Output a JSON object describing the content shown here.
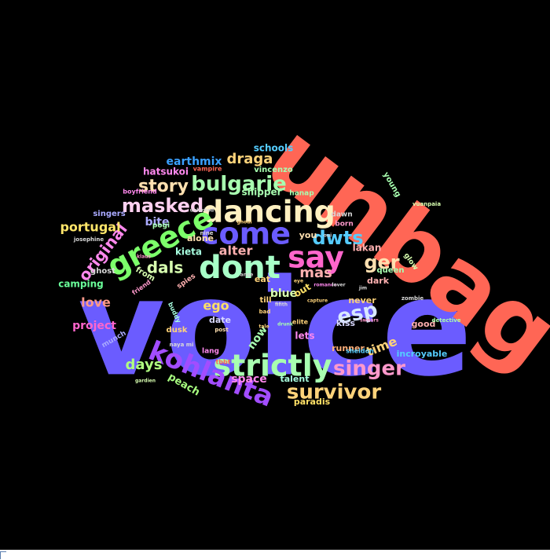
{
  "cloud": {
    "background": "#000000",
    "words": [
      {
        "text": "voice",
        "color": "#6b5cff"
      },
      {
        "text": "unbag",
        "color": "#ff6655"
      },
      {
        "text": "dont",
        "color": "#a8ffc8"
      },
      {
        "text": "dancing",
        "color": "#fff0c0"
      },
      {
        "text": "greece",
        "color": "#7cff6a"
      },
      {
        "text": "strictly",
        "color": "#a8ffb0"
      },
      {
        "text": "kohlanta",
        "color": "#a24dff"
      },
      {
        "text": "come",
        "color": "#6b5cff"
      },
      {
        "text": "say",
        "color": "#ff66cc"
      },
      {
        "text": "bulgarie",
        "color": "#a8ffb0"
      },
      {
        "text": "masked",
        "color": "#ffd0f0"
      },
      {
        "text": "singer",
        "color": "#ff99cc"
      },
      {
        "text": "survivor",
        "color": "#ffd37a"
      },
      {
        "text": "esp",
        "color": "#d8e8ff"
      },
      {
        "text": "dwts",
        "color": "#55ccff"
      },
      {
        "text": "ger",
        "color": "#ffe0b0"
      },
      {
        "text": "original",
        "color": "#ff88ee"
      },
      {
        "text": "story",
        "color": "#ffe0b0"
      },
      {
        "text": "draga",
        "color": "#ffd37a"
      },
      {
        "text": "dals",
        "color": "#d8ffb0"
      },
      {
        "text": "mas",
        "color": "#ffb0b0"
      },
      {
        "text": "days",
        "color": "#b0ff80"
      },
      {
        "text": "portugal",
        "color": "#ffe66a"
      },
      {
        "text": "love",
        "color": "#ff9a8a"
      },
      {
        "text": "project",
        "color": "#ff66cc"
      },
      {
        "text": "earthmix",
        "color": "#3aa0ff"
      },
      {
        "text": "time",
        "color": "#ffd37a"
      },
      {
        "text": "ego",
        "color": "#ffe066"
      },
      {
        "text": "alter",
        "color": "#ffb0b0"
      },
      {
        "text": "space",
        "color": "#ff88ee"
      },
      {
        "text": "peach",
        "color": "#a8ff80"
      },
      {
        "text": "blue",
        "color": "#d8ffb0"
      },
      {
        "text": "kieta",
        "color": "#a8ffe0"
      },
      {
        "text": "bite",
        "color": "#aaaaff"
      },
      {
        "text": "hatsukoi",
        "color": "#ff88ee"
      },
      {
        "text": "shipper",
        "color": "#a8ffb0"
      },
      {
        "text": "camping",
        "color": "#6aff9a"
      },
      {
        "text": "schools",
        "color": "#55ccff"
      },
      {
        "text": "paradis",
        "color": "#ffe066"
      },
      {
        "text": "lakan",
        "color": "#ffb0b0"
      },
      {
        "text": "incroyable",
        "color": "#55ccff"
      },
      {
        "text": "good",
        "color": "#ffb0b0"
      },
      {
        "text": "never",
        "color": "#ffd37a"
      },
      {
        "text": "kiss",
        "color": "#d8d8ff"
      },
      {
        "text": "dark",
        "color": "#ffb0b0"
      },
      {
        "text": "queen",
        "color": "#a8ffb0"
      },
      {
        "text": "runner",
        "color": "#ffb07a"
      },
      {
        "text": "talent",
        "color": "#a8ffe0"
      },
      {
        "text": "young",
        "color": "#a8ffb0"
      },
      {
        "text": "date",
        "color": "#d8d8ff"
      },
      {
        "text": "now",
        "color": "#a8ffb0"
      },
      {
        "text": "out",
        "color": "#ffe066"
      },
      {
        "text": "eat",
        "color": "#ffd37a"
      },
      {
        "text": "alone",
        "color": "#ffe0b0"
      },
      {
        "text": "ghost",
        "color": "#d8d8d8"
      },
      {
        "text": "from",
        "color": "#d8ffb0"
      },
      {
        "text": "dusk",
        "color": "#ffd37a"
      },
      {
        "text": "vincenzo",
        "color": "#a8ffb0"
      },
      {
        "text": "singers",
        "color": "#aaaaff"
      },
      {
        "text": "hanap",
        "color": "#a8ffb0"
      },
      {
        "text": "dawn",
        "color": "#d8d8d8"
      },
      {
        "text": "lets",
        "color": "#ff88ee"
      },
      {
        "text": "you",
        "color": "#ffe0b0"
      },
      {
        "text": "born",
        "color": "#ff99cc"
      },
      {
        "text": "glow",
        "color": "#d8ffb0"
      },
      {
        "text": "lang",
        "color": "#ff88ee"
      },
      {
        "text": "munch",
        "color": "#aaaaff"
      },
      {
        "text": "vuanpaia",
        "color": "#d8ffb0"
      },
      {
        "text": "elite",
        "color": "#ffd37a"
      },
      {
        "text": "sheldon",
        "color": "#55ccff"
      },
      {
        "text": "tbbt",
        "color": "#ff6655"
      },
      {
        "text": "boyfriend",
        "color": "#ff88ee"
      },
      {
        "text": "vampire",
        "color": "#ff6655"
      },
      {
        "text": "josephine",
        "color": "#d8d8d8"
      },
      {
        "text": "friend",
        "color": "#ff99cc"
      },
      {
        "text": "detective",
        "color": "#a8ffb0"
      },
      {
        "text": "zombie",
        "color": "#d8d8d8"
      },
      {
        "text": "buddy",
        "color": "#a8ffe0"
      },
      {
        "text": "nine",
        "color": "#d8d8d8"
      },
      {
        "text": "pogi",
        "color": "#a8ffb0"
      },
      {
        "text": "swears",
        "color": "#ff99cc"
      },
      {
        "text": "capture",
        "color": "#ffd37a"
      },
      {
        "text": "gardien",
        "color": "#d8ffb0"
      },
      {
        "text": "bad",
        "color": "#ffd37a"
      },
      {
        "text": "romance",
        "color": "#ff88ee"
      },
      {
        "text": "lover",
        "color": "#d8d8d8"
      },
      {
        "text": "post",
        "color": "#ffe0b0"
      },
      {
        "text": "till",
        "color": "#ffd37a"
      },
      {
        "text": "tale",
        "color": "#ffd37a"
      },
      {
        "text": "ange",
        "color": "#d8d8d8"
      },
      {
        "text": "jim",
        "color": "#d8d8d8"
      },
      {
        "text": "eye",
        "color": "#ffd37a"
      },
      {
        "text": "drunk",
        "color": "#a8ffb0"
      },
      {
        "text": "spies",
        "color": "#ffb0b0"
      },
      {
        "text": "naya mi",
        "color": "#d8d8d8"
      },
      {
        "text": "unlocked",
        "color": "#d8d8d8"
      },
      {
        "text": "fifith",
        "color": "#d8d8d8"
      },
      {
        "text": "ghoul",
        "color": "#ffd37a"
      },
      {
        "text": "klaus",
        "color": "#ff99cc"
      },
      {
        "text": "oui",
        "color": "#d8d8d8"
      }
    ]
  }
}
